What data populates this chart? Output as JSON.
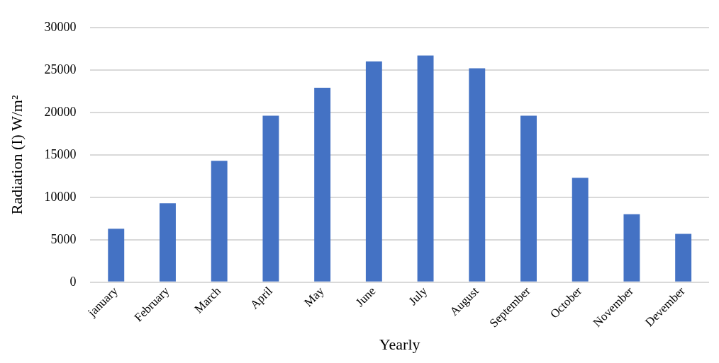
{
  "chart_data": {
    "type": "bar",
    "xlabel": "Yearly",
    "ylabel": "Radiation (I) W/m²",
    "categories": [
      "january",
      "February",
      "March",
      "April",
      "May",
      "June",
      "July",
      "August",
      "September",
      "October",
      "November",
      "Devember"
    ],
    "values": [
      6300,
      9300,
      14300,
      19600,
      22900,
      26000,
      26700,
      25200,
      19600,
      12300,
      8000,
      5700
    ],
    "color": "#4472c4",
    "ylim": [
      0,
      30000
    ],
    "yticks": [
      0,
      5000,
      10000,
      15000,
      20000,
      25000,
      30000
    ],
    "grid": "y",
    "legend": false
  }
}
